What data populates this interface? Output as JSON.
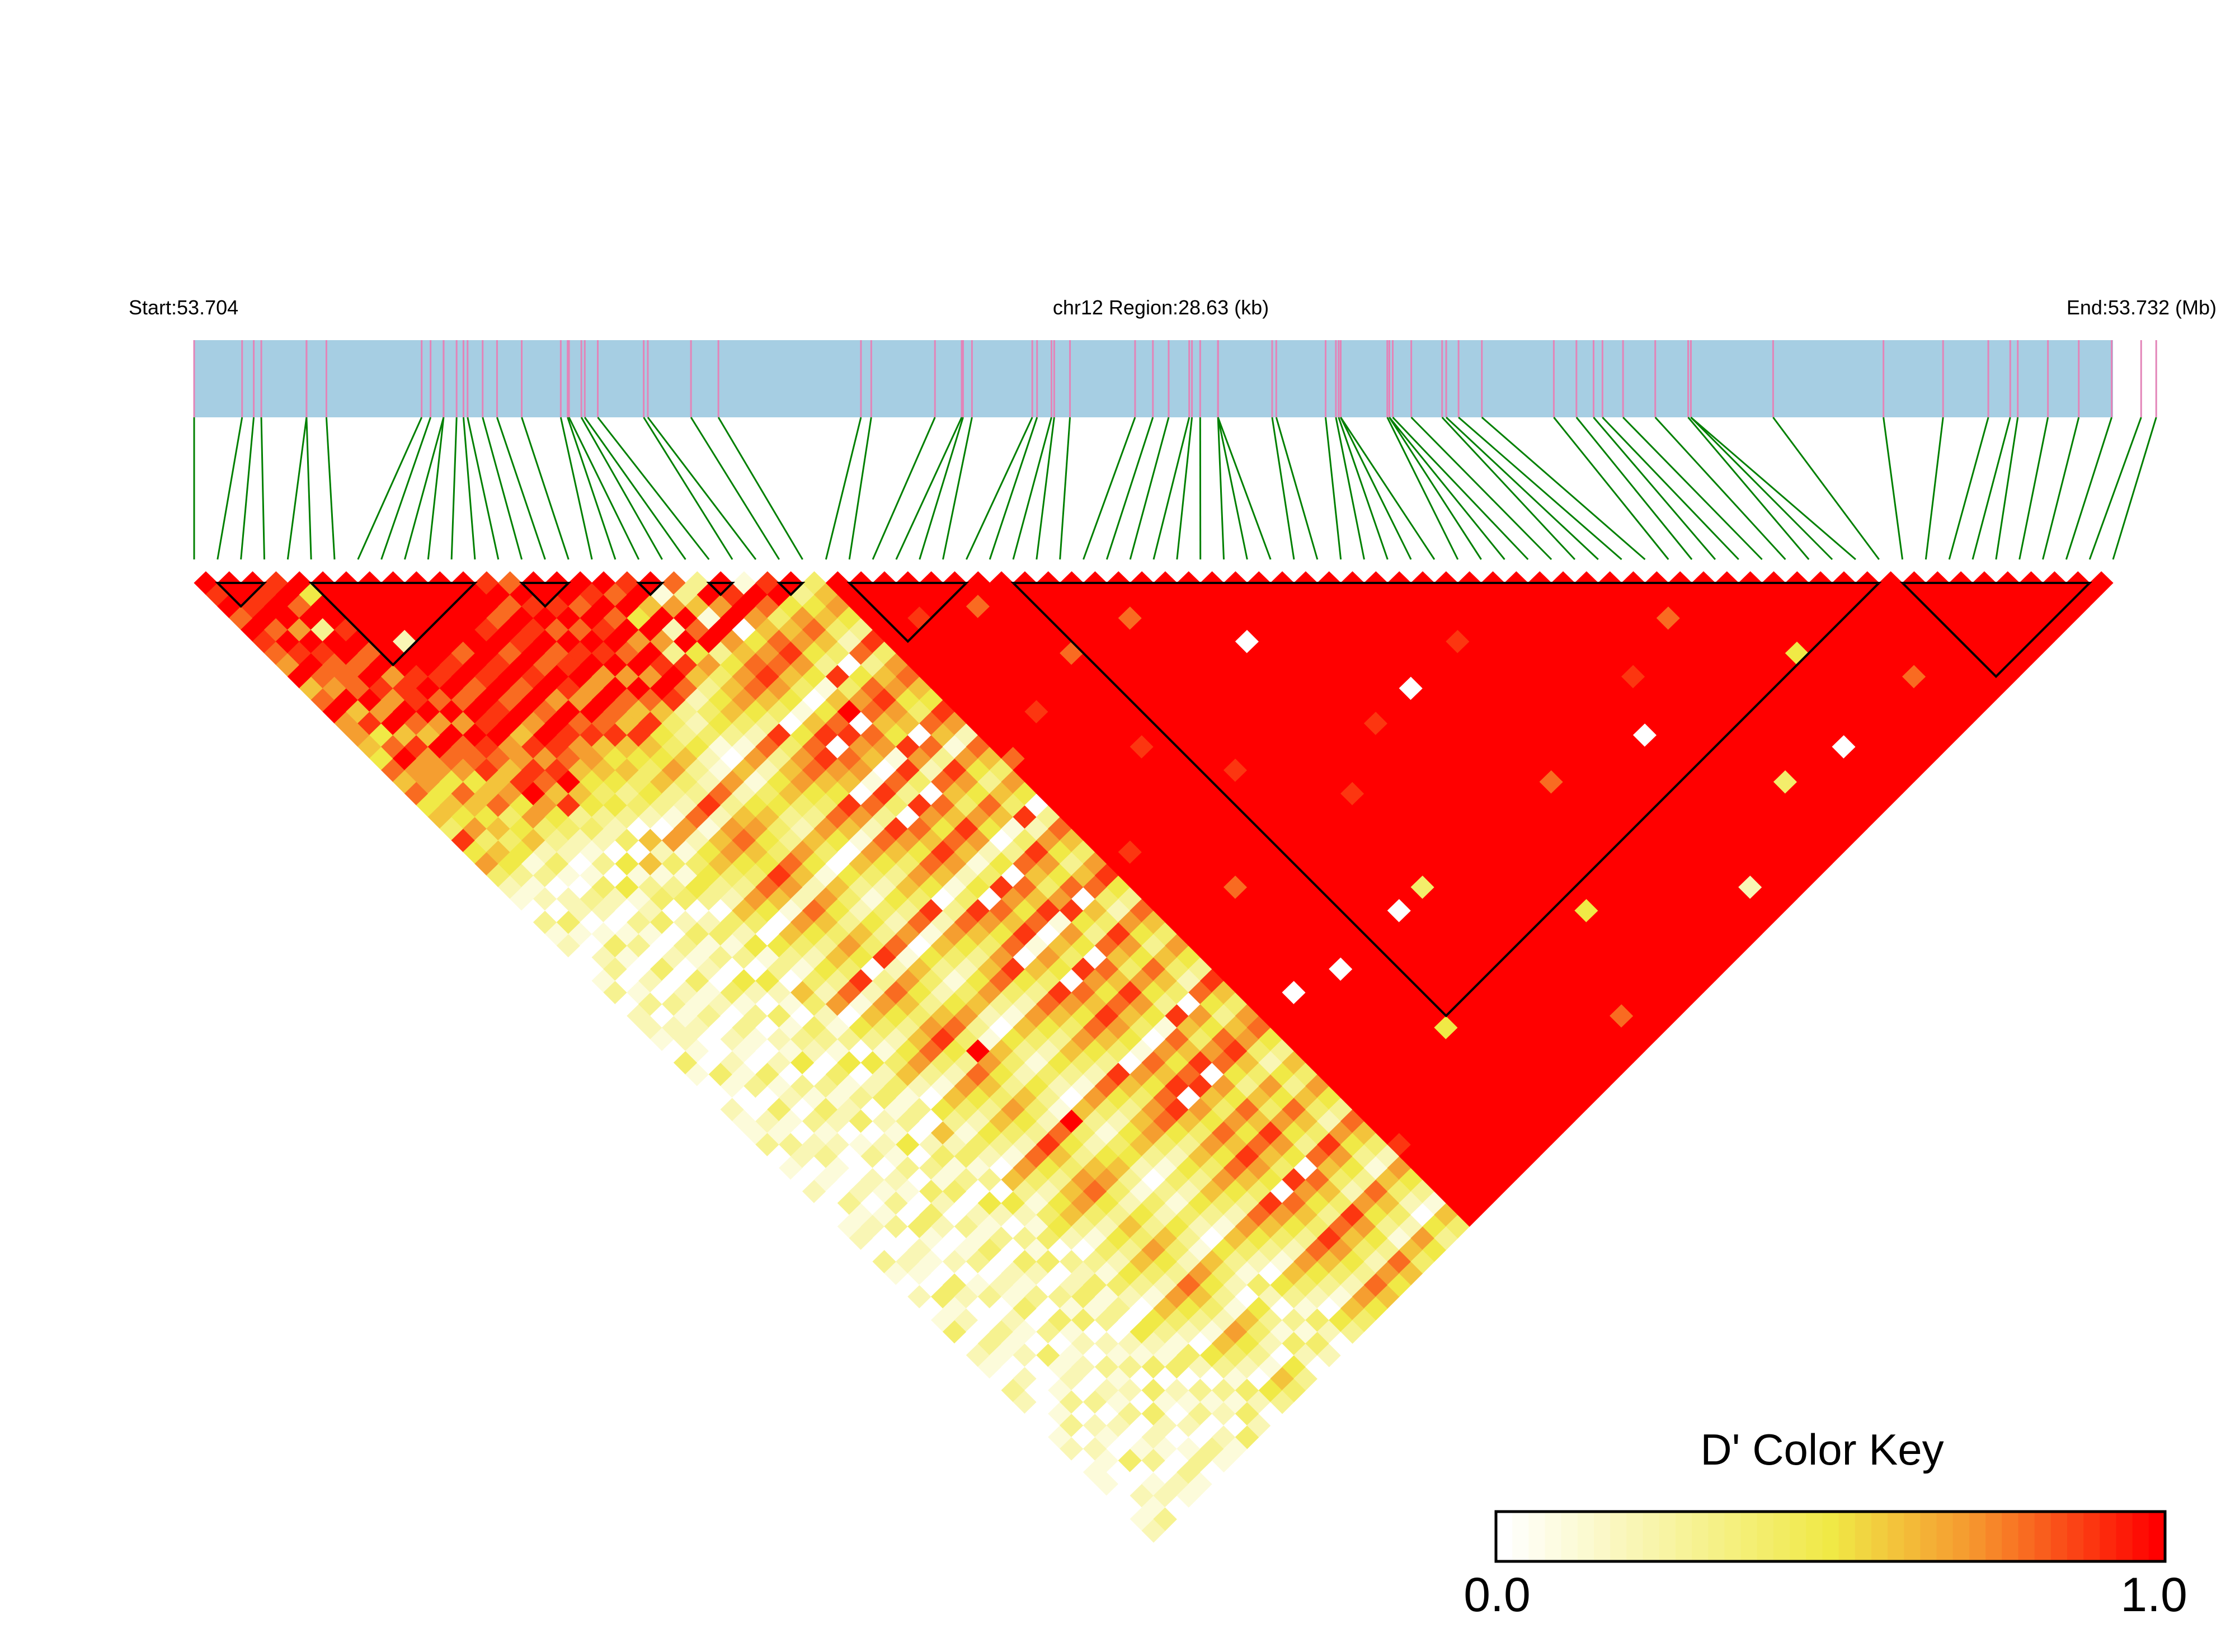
{
  "header": {
    "start_label": "Start:53.704",
    "region_label": "chr12 Region:28.63 (kb)",
    "end_label": "End:53.732 (Mb)"
  },
  "color_key": {
    "title": "D' Color Key",
    "min_label": "0.0",
    "max_label": "1.0"
  },
  "colors": {
    "gene_bar": "#a6cee3",
    "snp_tick": "#e384b8",
    "connector": "#008000",
    "block_outline": "#000000",
    "low": "#ffffff",
    "mid": "#f0e946",
    "orange": "#f6962e",
    "high": "#ff0000"
  },
  "chart_data": {
    "type": "heatmap",
    "metric": "D'",
    "chromosome": "chr12",
    "region_start_mb": 53.704,
    "region_end_mb": 53.732,
    "region_length_kb": 28.63,
    "value_range": [
      0,
      1
    ],
    "snp_positions_mb": [
      53.704,
      53.7047,
      53.70487,
      53.70498,
      53.70564,
      53.70564,
      53.70593,
      53.70732,
      53.70745,
      53.70764,
      53.70764,
      53.70783,
      53.70793,
      53.70799,
      53.70821,
      53.70842,
      53.70878,
      53.70935,
      53.70945,
      53.70947,
      53.70965,
      53.7097,
      53.70989,
      53.71056,
      53.71062,
      53.71125,
      53.71165,
      53.71373,
      53.71388,
      53.71481,
      53.7152,
      53.71522,
      53.71535,
      53.71623,
      53.7163,
      53.71651,
      53.71655,
      53.71678,
      53.71773,
      53.71799,
      53.71822,
      53.71852,
      53.71856,
      53.71868,
      53.71894,
      53.71894,
      53.71894,
      53.71973,
      53.71979,
      53.72051,
      53.72066,
      53.7207,
      53.72073,
      53.72073,
      53.72141,
      53.72144,
      53.72144,
      53.72149,
      53.72176,
      53.72221,
      53.72227,
      53.72245,
      53.72279,
      53.72384,
      53.72417,
      53.72442,
      53.72455,
      53.72485,
      53.72532,
      53.7258,
      53.72584,
      53.72584,
      53.72704,
      53.72865,
      53.72952,
      53.73018,
      53.7305,
      53.73061,
      53.73105,
      53.7315,
      53.73198,
      53.73241,
      53.73263
    ],
    "ld_blocks_snp_numbers": [
      [
        2,
        4
      ],
      [
        6,
        13
      ],
      [
        15,
        17
      ],
      [
        20,
        21
      ],
      [
        23,
        24
      ],
      [
        26,
        27
      ],
      [
        29,
        34
      ],
      [
        36,
        73
      ],
      [
        74,
        82
      ]
    ],
    "dprime_upper_triangle_rows": [
      "X9X8X987X6 8X77658685 649574 2103120013 0221041002 1130102001 2031020140 2103200120 110012",
      "XX9X8X9X87 X6958X7756 57465 3120410230 1302210410 0213201031 2002104120 3102001302 100213",
      "X9XX7X9888 X7X6977586 5645 1302201410 2031200213 0410231020 1302104200 3120013021 040120",
      "9X8X3XX8X9 7X86X87568 456 2410320130 4021302104 1203120021 3041020130 2104120302 013021",
      "X5XX9X8X79 9X7X889675 74 3201420310 2041203102 0314201302 1042013021 4030120213 021031",
      "XXXXXXXX9X 8X7X9869X7 5 4213051240 3120413021 5031240213 0420314021 3041203120 420130",
      "XXXXX2XX9X 8X9X779869 3420513402 4130520413 2041302150 3140213042 0314021304 102031",
      "XXXXXXX9X8 X9X6979X6 5324061340 2413052104 3150241302 4130520314 0241302140 213021",
      "XXXXXX8X9X 8X7X9865 4530624153 0425130642 1305241306 2413052140 3241305214 031204",
      "XXXXXXX9X8 X8X9776 5342071453 2640531427 0531462053 1420631452 0314205314 203142",
      "XXXX9X8X9X 7X8965 6453172564 3750642538 1642573164 2531742563 1425316420 531420",
      "XXX8X9X8X9 7X896 5463281675 4861753649 2753684275 3642853674 2536427531 642053",
      "9X8X9X89X7 X869 6574392786 5972864750 3864795386 4753964785 3647538642 753164",
      "8X9X8X9X7X 869 5463283675 4862753649 2753684X75 3642853674 2536427531 642053",
      "XX9X8X9X7X 86 4352172564 3751642538 1642573164 2531X42563 1425316420 531420",
      "XX8X9X8X7X 9 3241061453 2640531427 0531462053 1420631452 0314205314 203142",
      "X9X8X7X9X8 2453172564 3750642538 1642573164 2531742563 1425316420 531420",
      "X8X5X7396 3564283675 4861753649 2753684275 3642853674 2536427531 642053",
      "9X6X2X57 4675394786 5972864750 3864795386 4753964785 3647538642 753164",
      "X17X8X3 5786405897 6083975861 4975806497 5864075896 4758649753 864275",
      "8361X7 6897516908 7194086972 5086917508 6975186907 5869750864 975386",
      "3X7X0 5786405897 6083975861 4975806497 5864075896 4758649753 864275",
      "X9X7 6897516X08 7194086972 5086917508 6975186907 5869750864 975386",
      "1X8 4675394786 5972864750 3864795386 4753964785 3647538642 753164",
      "9X 5786405897 6083975861 4975806497 5864075896 4758649753 864275",
      "X 3564283675 4861753649 2753684275 3642853674 2536427531 642053",
      "4675394786 5972864750 3864795386 4753964785 3647538642 753164",
      "XXXXXXXXXX XXXXX8XXXX XXXXXXXXXX XXXXXXXXXX XXXXXXXX9X XXXXX",
      "XXXXXXXXXX XXXXXXXXXX XXX9XXXXXX XXXXXXXXXX XXXXXXXXXX XXXX",
      "XXX9XXXXXX XXXXXXXXXX XXXXXXXXXX XXXXX0XXXX XXXXXXXXXX XXX",
      "XXXXXXXXXX X9XXXXXXXX XXXXXXXXXX XXXXXXXXXX XXXXXXXXXX XX",
      "XXXXXXXXXX XXXXXXXXXX XXXXXX8XXX XXXXXXXXXX XXXXXXXXXX X",
      "XX8XXXXXXX XXXXXXXXXX XXXXXXXXXX XXX0XXXXXX XXXXXXXXXX",
      "XXXXXXXXXX XXXX9XXXXX XXXXXXXXXX XXXXXXXXXX XXXXXXXXX",
      "XXXXXX8XXX XXXXXXXXXX XXXXXXXXXX XXXXXXXX5X XXXXXXXX",
      "XXXXXXXXXX XXXXXXXXXX XXXXXXXXXX XXXXXXXXXX XXXXXXX",
      "XXXXXXXXXX XXXXXX9XXX XXXXXXXXXX XXXXXXXXXX XXXXXX",
      "XXXXXXXXXX XXXXXXXXXX XXXXXXXX0X XXXXXXXXXX XXXXX",
      "XXX8XXXXXX XXXXXXXXXX XXXXXXXXXX XXXXXXXXXX XXXX",
      "XXXXXXXXXX XXXXXXXXXX XXXXXX4XXX XXXXXXXXXX XXX",
      "XXXXXXXXXX XXXXXXXX9X XXXXXXXXXX XXXXXXXXXX XX",
      "XXXXXXXXXX XXXXXXXXXX XXXXXXXXXX XXXXXXXXXX X",
      "XXXXX0XXXX XXXXXXXXXX XXXXXXXXXX XXXXXXX8XX",
      "XXXXXXXXXX XXXXXXXXXX XXXXXXXXXX XXXXXXXXX",
      "XXXXXXXXXX XX9XXXXXXX XXXXXXXXXX XXXXXXXX",
      "XXXXXXXXXX XXXXXXXXXX XXXXXXXX5X XXXXXXX",
      "XXXXXXXXXX XXXXXXXXXX XXXXXXXXXX XXXXXX",
      "XXXXXXXXX0 XXXXXXXXXX XXXXXXXXXX XXXXX",
      "XXXXXXXXXX XXXXXXXXXX XXXXXXXXXX XXXX",
      "XXXXXXXXXX XXXXXXX8XX XXXXXXXXXX XXX",
      "XXXXXXXXXX XXXXXXXXXX XXXXXXXXXX XX",
      "XXXXX9XXXX XXXXXXXXXX XXXXXXXXXX X",
      "XXXXXXXXXX XXXXXXXXXX XXXXXXXXXX",
      "XXXXXXXXXX XXXXXXXXXX XXXXXX2XX",
      "XXXXXXXXXX XXXXXXXXXX XXXXXXXX",
      "XXXXXXXXXX XXX0XXXXXX XXXXXXX",
      "XXXXXXXXXX XXXXXXXXXX XXXXXX",
      "XXXXXXXX9X XXXXXXXXXX XXXXX",
      "XXXXXXXXXX XXXXXXXXXX XXXX",
      "XXXXXXXXXX XXXXXXX4XX XXX",
      "XXXXXXXXXX XXXXXXXXXX XX",
      "XXX8XXXXXX XXXXXXXXXX X",
      "XXXXXXXXXX XXXXXXXXXX",
      "XXXXXXXXXX XXXX0XXXX",
      "XXXXXXXXXX XXXXXXXX",
      "XXXXXX5XXX XXXXXXX",
      "XXXXXXXXXX XXXXXX",
      "XXXXXXXXXX XXXXX",
      "XXXXXXXXXX XXXX",
      "XXXXXXXX8X XXX",
      "XXXXXXXXXX XX",
      "XXXXXXXXXX X",
      "XXXXXXXXXX",
      "XXXXXXXXX",
      "XXXXXXXX",
      "XXXXXXX",
      "XXXXXX",
      "XXXXX",
      "XXXX",
      "XXX",
      "XX",
      "X",
      ""
    ]
  }
}
